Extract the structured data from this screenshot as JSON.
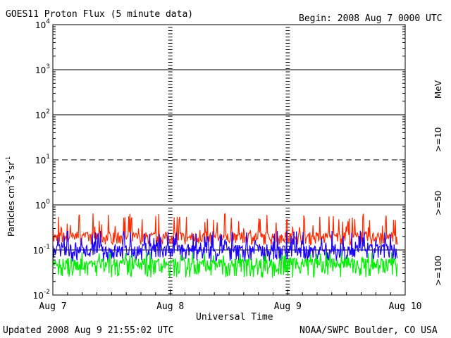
{
  "chart_data": {
    "type": "line",
    "title": "GOES11 Proton Flux (5 minute data)",
    "begin_label": "Begin: 2008 Aug 7 0000 UTC",
    "xlabel": "Universal Time",
    "ylabel": {
      "base": "Particles cm",
      "exp1": "-2",
      "mid1": "s",
      "exp2": "-1",
      "mid2": "sr",
      "exp3": "-1"
    },
    "y_scale": "log",
    "ylim": [
      0.01,
      10000
    ],
    "y_ticks": [
      {
        "value": 10000,
        "base": "10",
        "exp": "4"
      },
      {
        "value": 1000,
        "base": "10",
        "exp": "3"
      },
      {
        "value": 100,
        "base": "10",
        "exp": "2"
      },
      {
        "value": 10,
        "base": "10",
        "exp": "1"
      },
      {
        "value": 1,
        "base": "10",
        "exp": "0"
      },
      {
        "value": 0.1,
        "base": "10",
        "exp": "-1"
      },
      {
        "value": 0.01,
        "base": "10",
        "exp": "-2"
      }
    ],
    "x_ticks": [
      "Aug 7",
      "Aug 8",
      "Aug 9",
      "Aug 10"
    ],
    "xlim_days": [
      0,
      3
    ],
    "series": [
      {
        "name": ">=10",
        "color": "#ff2a00",
        "baseline": 0.19,
        "low": 0.13,
        "spike_max": 0.65
      },
      {
        "name": ">=50",
        "color": "#1a00ff",
        "baseline": 0.095,
        "low": 0.055,
        "spike_max": 0.27
      },
      {
        "name": ">=100",
        "color": "#00ee00",
        "baseline": 0.045,
        "low": 0.024,
        "spike_max": 0.09
      }
    ],
    "legend_unit": "MeV",
    "threshold_line": {
      "value": 10,
      "style": "dashed"
    },
    "solid_lines": [
      1000,
      100,
      1,
      0.1
    ],
    "footer_left": "Updated 2008 Aug  9 21:55:02 UTC",
    "footer_right": "NOAA/SWPC Boulder, CO USA"
  }
}
